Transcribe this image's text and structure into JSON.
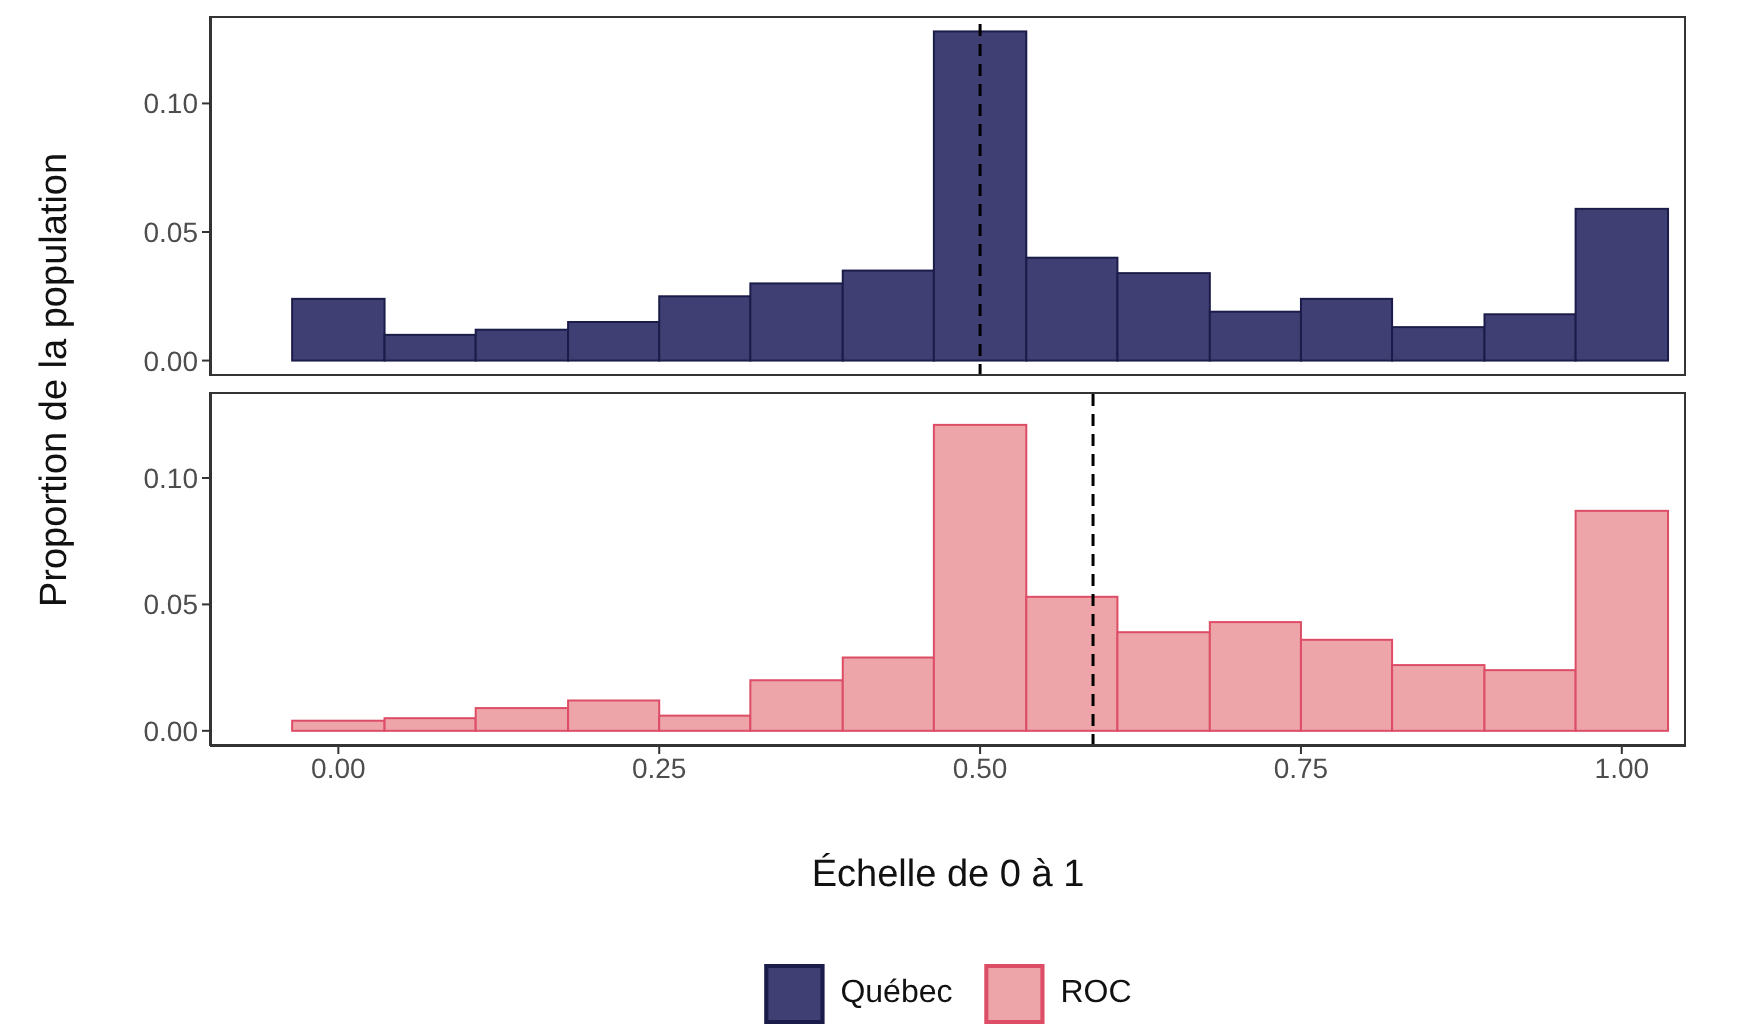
{
  "chart_data": [
    {
      "type": "histogram",
      "ylabel": "Proportion de la population",
      "bins": [
        -0.036,
        0.036,
        0.107,
        0.179,
        0.25,
        0.321,
        0.393,
        0.464,
        0.536,
        0.607,
        0.679,
        0.75,
        0.821,
        0.893,
        0.964,
        1.036
      ],
      "series": [
        {
          "name": "Québec",
          "color": "#3f3f73",
          "values": [
            0.024,
            0.01,
            0.012,
            0.015,
            0.025,
            0.03,
            0.035,
            0.128,
            0.04,
            0.034,
            0.019,
            0.024,
            0.013,
            0.018,
            0.059
          ]
        }
      ],
      "xlim": [
        -0.1,
        1.05
      ],
      "ylim": [
        -0.006,
        0.134
      ],
      "yticks": [
        {
          "value": 0,
          "label": "0.00"
        },
        {
          "value": 0.05,
          "label": "0.05"
        },
        {
          "value": 0.1,
          "label": "0.10"
        }
      ],
      "tick_labels": "y",
      "grid": false,
      "legend": "bottom",
      "ref_lines": [
        {
          "axis": "x",
          "value": 0.5,
          "line_style": "dashed",
          "color": "#000000"
        }
      ]
    },
    {
      "type": "histogram",
      "xlabel": "Échelle de 0 à 1",
      "bins": [
        -0.036,
        0.036,
        0.107,
        0.179,
        0.25,
        0.321,
        0.393,
        0.464,
        0.536,
        0.607,
        0.679,
        0.75,
        0.821,
        0.893,
        0.964,
        1.036
      ],
      "series": [
        {
          "name": "ROC",
          "color": "#eda5aa",
          "values": [
            0.004,
            0.005,
            0.009,
            0.012,
            0.006,
            0.02,
            0.029,
            0.121,
            0.053,
            0.039,
            0.043,
            0.036,
            0.026,
            0.024,
            0.087
          ]
        }
      ],
      "xlim": [
        -0.1,
        1.05
      ],
      "xticks": [
        {
          "value": 0,
          "label": "0.00"
        },
        {
          "value": 0.25,
          "label": "0.25"
        },
        {
          "value": 0.5,
          "label": "0.50"
        },
        {
          "value": 0.75,
          "label": "0.75"
        },
        {
          "value": 1,
          "label": "1.00"
        }
      ],
      "ylim": [
        -0.006,
        0.134
      ],
      "yticks": [
        {
          "value": 0,
          "label": "0.00"
        },
        {
          "value": 0.05,
          "label": "0.05"
        },
        {
          "value": 0.1,
          "label": "0.10"
        }
      ],
      "grid": false,
      "legend": "bottom",
      "ref_lines": [
        {
          "axis": "x",
          "value": 0.588,
          "line_style": "dashed",
          "color": "#000000"
        }
      ]
    }
  ]
}
